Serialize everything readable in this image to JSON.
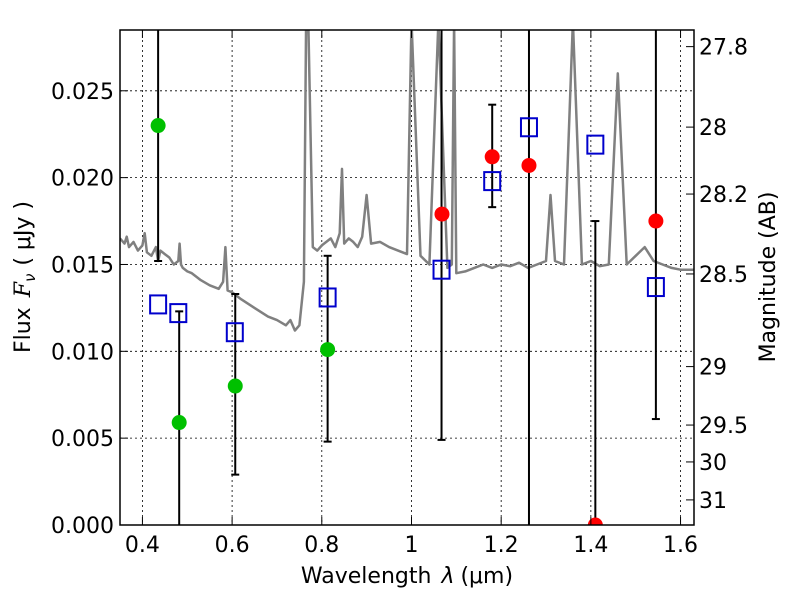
{
  "chart_data": {
    "type": "scatter",
    "xlabel_text": "Wavelength",
    "xlabel_sym": "λ",
    "xlabel_unit": "(μm)",
    "ylabel_text": "Flux",
    "ylabel_sym": "F",
    "ylabel_sub": "ν",
    "ylabel_unit": "( μJy )",
    "y2label": "Magnitude (AB)",
    "xlim": [
      0.35,
      1.63
    ],
    "ylim": [
      0.0,
      0.0285
    ],
    "grid": true,
    "x_ticks": [
      0.4,
      0.6,
      0.8,
      1.0,
      1.2,
      1.4,
      1.6
    ],
    "x_tick_labels": [
      "0.4",
      "0.6",
      "0.8",
      "1",
      "1.2",
      "1.4",
      "1.6"
    ],
    "y_ticks": [
      0.0,
      0.005,
      0.01,
      0.015,
      0.02,
      0.025
    ],
    "y_tick_labels": [
      "0.000",
      "0.005",
      "0.010",
      "0.015",
      "0.020",
      "0.025"
    ],
    "mag_ticks": [
      27.8,
      28,
      28.2,
      28.5,
      29,
      29.5,
      30,
      31
    ],
    "mag_tick_labels": [
      "27.8",
      "28",
      "28.2",
      "28.5",
      "29",
      "29.5",
      "30",
      "31"
    ],
    "model_spectrum": {
      "name": "model SED",
      "color": "#808080",
      "x": [
        0.35,
        0.36,
        0.365,
        0.37,
        0.38,
        0.39,
        0.4,
        0.405,
        0.41,
        0.42,
        0.43,
        0.435,
        0.44,
        0.45,
        0.46,
        0.47,
        0.48,
        0.483,
        0.486,
        0.49,
        0.5,
        0.51,
        0.52,
        0.53,
        0.55,
        0.57,
        0.58,
        0.585,
        0.59,
        0.6,
        0.62,
        0.65,
        0.68,
        0.7,
        0.72,
        0.73,
        0.74,
        0.75,
        0.76,
        0.765,
        0.77,
        0.78,
        0.79,
        0.8,
        0.81,
        0.82,
        0.83,
        0.84,
        0.845,
        0.85,
        0.86,
        0.87,
        0.88,
        0.89,
        0.9,
        0.91,
        0.93,
        0.95,
        0.97,
        0.99,
        1.0,
        1.02,
        1.04,
        1.06,
        1.08,
        1.09,
        1.095,
        1.1,
        1.12,
        1.14,
        1.16,
        1.18,
        1.2,
        1.22,
        1.24,
        1.26,
        1.28,
        1.3,
        1.31,
        1.32,
        1.34,
        1.36,
        1.38,
        1.4,
        1.42,
        1.44,
        1.46,
        1.48,
        1.5,
        1.52,
        1.54,
        1.56,
        1.58,
        1.6,
        1.63
      ],
      "y": [
        0.0165,
        0.0162,
        0.0166,
        0.016,
        0.0163,
        0.0158,
        0.0161,
        0.0168,
        0.0157,
        0.0155,
        0.016,
        0.0152,
        0.0158,
        0.0156,
        0.0154,
        0.015,
        0.0152,
        0.0162,
        0.015,
        0.0148,
        0.0146,
        0.0145,
        0.0143,
        0.0141,
        0.0138,
        0.0136,
        0.014,
        0.016,
        0.0135,
        0.0134,
        0.013,
        0.0125,
        0.012,
        0.0118,
        0.0115,
        0.0118,
        0.0112,
        0.0115,
        0.014,
        0.029,
        0.029,
        0.016,
        0.0158,
        0.0161,
        0.0163,
        0.0165,
        0.016,
        0.0168,
        0.0205,
        0.0162,
        0.0165,
        0.0163,
        0.016,
        0.0166,
        0.019,
        0.0162,
        0.0163,
        0.016,
        0.0158,
        0.0156,
        0.029,
        0.0155,
        0.015,
        0.029,
        0.0148,
        0.015,
        0.029,
        0.0145,
        0.0146,
        0.0148,
        0.015,
        0.0148,
        0.015,
        0.0149,
        0.0151,
        0.0148,
        0.015,
        0.0152,
        0.019,
        0.0152,
        0.015,
        0.029,
        0.015,
        0.0152,
        0.0149,
        0.015,
        0.026,
        0.015,
        0.0155,
        0.016,
        0.0152,
        0.015,
        0.0148,
        0.0147,
        0.0147
      ]
    },
    "series": [
      {
        "name": "green points",
        "marker": "filled-circle",
        "color": "#00c000",
        "x": [
          0.435,
          0.482,
          0.607,
          0.813
        ],
        "y": [
          0.023,
          0.0059,
          0.008,
          0.0101
        ]
      },
      {
        "name": "red points",
        "marker": "filled-circle",
        "color": "#ff0000",
        "x": [
          1.068,
          1.18,
          1.262,
          1.41,
          1.545
        ],
        "y": [
          0.0179,
          0.0212,
          0.0207,
          0.0,
          0.0175
        ]
      },
      {
        "name": "blue squares",
        "marker": "open-square",
        "color": "#0000cc",
        "x": [
          0.435,
          0.48,
          0.606,
          0.813,
          1.067,
          1.18,
          1.262,
          1.41,
          1.545
        ],
        "y": [
          0.0127,
          0.0122,
          0.0111,
          0.0131,
          0.0147,
          0.0198,
          0.0229,
          0.0219,
          0.0137
        ]
      }
    ],
    "error_bars": [
      {
        "x": 0.435,
        "low": 0.0152,
        "high": 0.029,
        "cap_low": true,
        "cap_high": false
      },
      {
        "x": 0.482,
        "low": 0.0,
        "high": 0.0123,
        "cap_low": false,
        "cap_high": true
      },
      {
        "x": 0.607,
        "low": 0.0029,
        "high": 0.0133,
        "cap_low": true,
        "cap_high": true
      },
      {
        "x": 0.813,
        "low": 0.0048,
        "high": 0.0155,
        "cap_low": true,
        "cap_high": true
      },
      {
        "x": 1.067,
        "low": 0.0049,
        "high": 0.029,
        "cap_low": true,
        "cap_high": false
      },
      {
        "x": 1.18,
        "low": 0.0183,
        "high": 0.0242,
        "cap_low": true,
        "cap_high": true
      },
      {
        "x": 1.262,
        "low": 0.0,
        "high": 0.029,
        "cap_low": false,
        "cap_high": false
      },
      {
        "x": 1.41,
        "low": 0.0,
        "high": 0.0175,
        "cap_low": false,
        "cap_high": true
      },
      {
        "x": 1.545,
        "low": 0.0061,
        "high": 0.029,
        "cap_low": true,
        "cap_high": false
      }
    ]
  }
}
